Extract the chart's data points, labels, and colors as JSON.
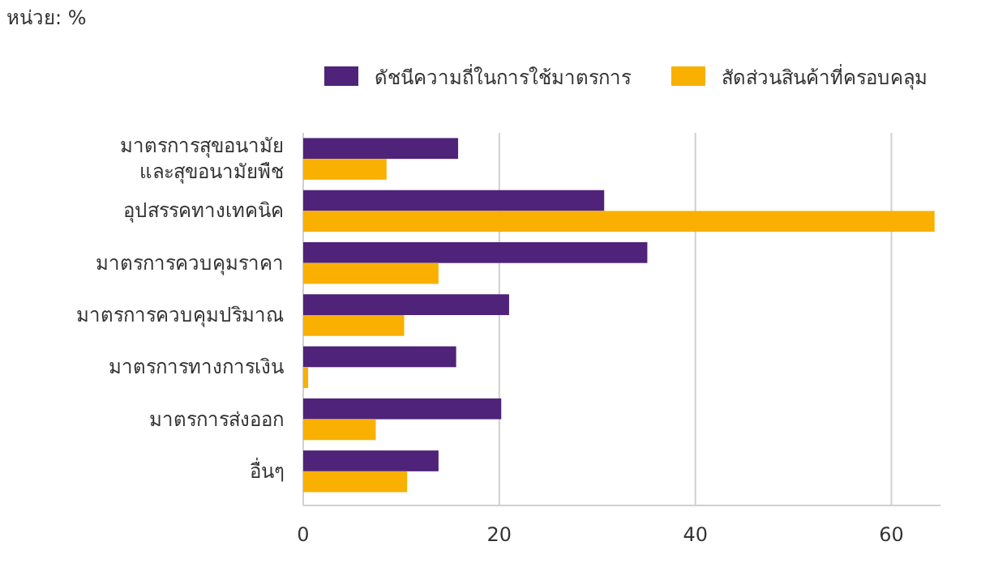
{
  "chart_data": {
    "type": "bar",
    "orientation": "horizontal",
    "categories": [
      "มาตรการสุขอนามัยและสุขอนามัยพืช",
      "อุปสรรคทางเทคนิค",
      "มาตรการควบคุมราคา",
      "มาตรการควบคุมปริมาณ",
      "มาตรการทางการเงิน",
      "มาตรการส่งออก",
      "อื่นๆ"
    ],
    "series": [
      {
        "name": "ดัชนีความถี่ในการใช้มาตรการ",
        "color": "#4f2379",
        "values": [
          15.8,
          30.7,
          35.1,
          21.0,
          15.6,
          20.2,
          13.8
        ]
      },
      {
        "name": "สัดส่วนสินค้าที่ครอบคลุม",
        "color": "#f9b000",
        "values": [
          8.5,
          64.4,
          13.8,
          10.3,
          0.5,
          7.4,
          10.6
        ]
      }
    ],
    "xlim": [
      0,
      65
    ],
    "xticks": [
      0,
      20,
      40,
      60
    ],
    "grid": "x",
    "legend": "top right",
    "annotations": [
      "หน่วย: %"
    ]
  }
}
